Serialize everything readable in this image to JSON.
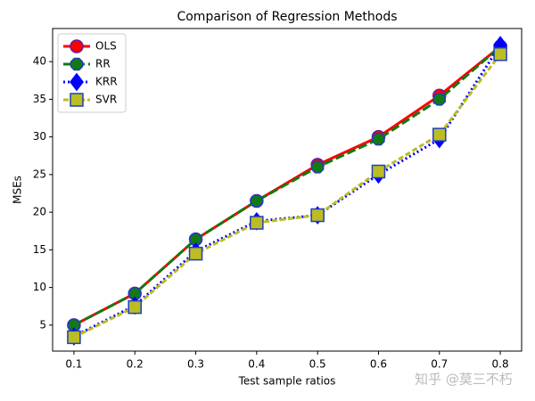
{
  "chart_data": {
    "type": "line",
    "title": "Comparison of Regression Methods",
    "xlabel": "Test sample ratios",
    "ylabel": "MSEs",
    "x": [
      0.1,
      0.2,
      0.3,
      0.4,
      0.5,
      0.6,
      0.7,
      0.8
    ],
    "series": [
      {
        "name": "OLS",
        "color": "#ff0000",
        "marker": "circle",
        "marker_edge": "#6a1b9a",
        "dash": "",
        "width": 3,
        "values": [
          5.0,
          9.2,
          16.4,
          21.5,
          26.3,
          30.0,
          35.5,
          42.0
        ]
      },
      {
        "name": "RR",
        "color": "#127a12",
        "marker": "octagon",
        "marker_edge": "#1f3fbf",
        "dash": "10 4",
        "width": 3,
        "values": [
          5.0,
          9.2,
          16.4,
          21.5,
          26.0,
          29.7,
          35.0,
          42.0
        ]
      },
      {
        "name": "KRR",
        "color": "#0000ff",
        "marker": "diamond",
        "marker_edge": "#0000ff",
        "dash": "2 3",
        "width": 3,
        "values": [
          3.5,
          7.6,
          14.8,
          18.8,
          19.6,
          25.0,
          29.7,
          42.2
        ]
      },
      {
        "name": "SVR",
        "color": "#bcbd22",
        "marker": "square",
        "marker_edge": "#1f3fbf",
        "dash": "6 3",
        "width": 3,
        "values": [
          3.4,
          7.4,
          14.5,
          18.6,
          19.6,
          25.4,
          30.3,
          41.0
        ]
      }
    ],
    "xlim": [
      0.065,
      0.835
    ],
    "ylim": [
      1.55,
      44.4
    ],
    "xticks": [
      0.1,
      0.2,
      0.3,
      0.4,
      0.5,
      0.6,
      0.7,
      0.8
    ],
    "yticks": [
      5,
      10,
      15,
      20,
      25,
      30,
      35,
      40
    ],
    "legend": "upper left",
    "grid": false,
    "watermark": "知乎 @莫三不朽"
  }
}
